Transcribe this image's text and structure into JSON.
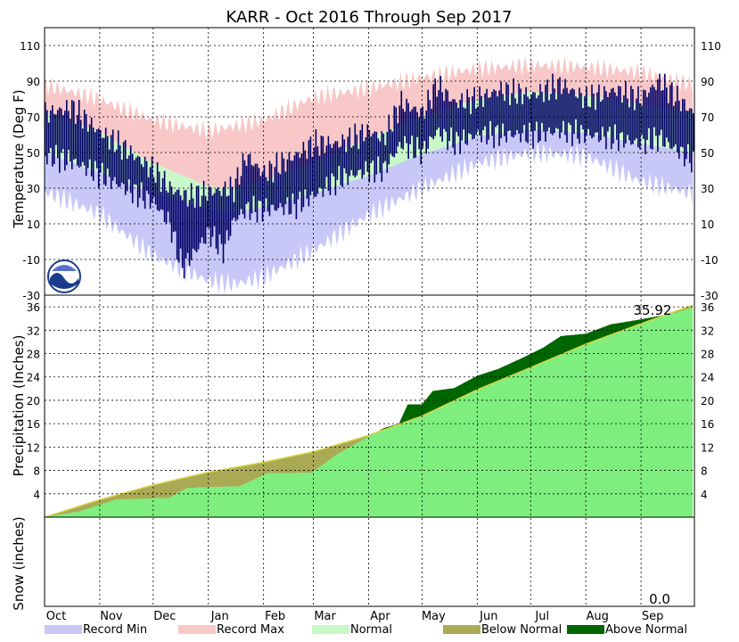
{
  "chart_data": {
    "type": "area",
    "title": "KARR - Oct 2016 Through Sep 2017",
    "months": [
      "Oct",
      "Nov",
      "Dec",
      "Jan",
      "Feb",
      "Mar",
      "Apr",
      "May",
      "Jun",
      "Jul",
      "Aug",
      "Sep"
    ],
    "month_days": [
      31,
      30,
      31,
      31,
      28,
      31,
      30,
      31,
      30,
      31,
      31,
      30
    ],
    "panels": {
      "temperature": {
        "ylabel": "Temperature (Deg F)",
        "ylim": [
          -30,
          120
        ],
        "ticks": [
          -10,
          10,
          30,
          50,
          70,
          90,
          110
        ],
        "tick_labels": [
          "-10",
          "10",
          "30",
          "50",
          "70",
          "90",
          "110"
        ],
        "bottom_tick_label": "-30",
        "normal_high": [
          [
            0,
            73
          ],
          [
            30,
            62
          ],
          [
            61,
            44
          ],
          [
            92,
            31
          ],
          [
            106,
            30
          ],
          [
            123,
            34
          ],
          [
            151,
            45
          ],
          [
            182,
            58
          ],
          [
            212,
            70
          ],
          [
            243,
            80
          ],
          [
            273,
            84
          ],
          [
            304,
            82
          ],
          [
            334,
            77
          ],
          [
            364,
            73
          ]
        ],
        "normal_low": [
          [
            0,
            50
          ],
          [
            30,
            39
          ],
          [
            61,
            27
          ],
          [
            92,
            18
          ],
          [
            106,
            17
          ],
          [
            123,
            19
          ],
          [
            151,
            27
          ],
          [
            182,
            37
          ],
          [
            212,
            49
          ],
          [
            243,
            59
          ],
          [
            273,
            63
          ],
          [
            304,
            61
          ],
          [
            334,
            55
          ],
          [
            364,
            50
          ]
        ],
        "record_max": [
          [
            0,
            88
          ],
          [
            30,
            80
          ],
          [
            61,
            68
          ],
          [
            92,
            62
          ],
          [
            123,
            68
          ],
          [
            151,
            81
          ],
          [
            182,
            86
          ],
          [
            212,
            92
          ],
          [
            243,
            97
          ],
          [
            273,
            99
          ],
          [
            304,
            98
          ],
          [
            334,
            95
          ],
          [
            364,
            88
          ]
        ],
        "record_min": [
          [
            0,
            28
          ],
          [
            30,
            16
          ],
          [
            61,
            -8
          ],
          [
            92,
            -22
          ],
          [
            106,
            -24
          ],
          [
            123,
            -20
          ],
          [
            151,
            -5
          ],
          [
            182,
            15
          ],
          [
            212,
            30
          ],
          [
            243,
            44
          ],
          [
            273,
            50
          ],
          [
            304,
            48
          ],
          [
            334,
            34
          ],
          [
            364,
            27
          ]
        ],
        "observed_high": [
          [
            0,
            72
          ],
          [
            15,
            75
          ],
          [
            30,
            62
          ],
          [
            45,
            52
          ],
          [
            61,
            40
          ],
          [
            70,
            30
          ],
          [
            80,
            25
          ],
          [
            92,
            28
          ],
          [
            106,
            30
          ],
          [
            113,
            48
          ],
          [
            123,
            38
          ],
          [
            140,
            48
          ],
          [
            151,
            55
          ],
          [
            165,
            55
          ],
          [
            182,
            62
          ],
          [
            190,
            58
          ],
          [
            200,
            78
          ],
          [
            212,
            72
          ],
          [
            220,
            88
          ],
          [
            230,
            78
          ],
          [
            243,
            80
          ],
          [
            255,
            85
          ],
          [
            273,
            82
          ],
          [
            290,
            88
          ],
          [
            304,
            80
          ],
          [
            320,
            85
          ],
          [
            334,
            80
          ],
          [
            345,
            90
          ],
          [
            364,
            72
          ]
        ],
        "observed_low": [
          [
            0,
            48
          ],
          [
            15,
            45
          ],
          [
            30,
            38
          ],
          [
            45,
            30
          ],
          [
            61,
            22
          ],
          [
            70,
            10
          ],
          [
            77,
            -15
          ],
          [
            92,
            5
          ],
          [
            100,
            -5
          ],
          [
            106,
            12
          ],
          [
            113,
            18
          ],
          [
            123,
            18
          ],
          [
            140,
            20
          ],
          [
            151,
            26
          ],
          [
            165,
            35
          ],
          [
            182,
            40
          ],
          [
            190,
            40
          ],
          [
            200,
            55
          ],
          [
            212,
            50
          ],
          [
            220,
            62
          ],
          [
            230,
            55
          ],
          [
            243,
            60
          ],
          [
            255,
            60
          ],
          [
            273,
            60
          ],
          [
            290,
            62
          ],
          [
            304,
            60
          ],
          [
            320,
            58
          ],
          [
            334,
            55
          ],
          [
            345,
            58
          ],
          [
            364,
            45
          ]
        ]
      },
      "precipitation": {
        "ylabel": "Precipitation (Inches)",
        "ylim": [
          0,
          38
        ],
        "ticks": [
          4,
          8,
          12,
          16,
          20,
          24,
          28,
          32,
          36
        ],
        "tick_labels": [
          "4",
          "8",
          "12",
          "16",
          "20",
          "24",
          "28",
          "32",
          "36"
        ],
        "total_label": "35.92",
        "normal_cumulative": [
          [
            0,
            0
          ],
          [
            31,
            3.0
          ],
          [
            61,
            5.5
          ],
          [
            92,
            7.7
          ],
          [
            123,
            9.4
          ],
          [
            151,
            11.2
          ],
          [
            182,
            14.0
          ],
          [
            212,
            17.3
          ],
          [
            243,
            21.8
          ],
          [
            273,
            25.6
          ],
          [
            304,
            29.6
          ],
          [
            334,
            33.0
          ],
          [
            364,
            36.3
          ]
        ],
        "observed_cumulative": [
          [
            0,
            0
          ],
          [
            20,
            1.0
          ],
          [
            40,
            3.0
          ],
          [
            70,
            3.3
          ],
          [
            80,
            5.0
          ],
          [
            110,
            5.3
          ],
          [
            125,
            7.5
          ],
          [
            150,
            7.6
          ],
          [
            164,
            10.7
          ],
          [
            182,
            13.8
          ],
          [
            191,
            15.3
          ],
          [
            199,
            16.0
          ],
          [
            204,
            19.3
          ],
          [
            212,
            19.3
          ],
          [
            218,
            21.6
          ],
          [
            230,
            22.1
          ],
          [
            243,
            24.2
          ],
          [
            255,
            25.4
          ],
          [
            270,
            27.5
          ],
          [
            280,
            29.0
          ],
          [
            290,
            31.0
          ],
          [
            304,
            31.4
          ],
          [
            318,
            33.0
          ],
          [
            334,
            33.8
          ],
          [
            355,
            35.0
          ],
          [
            364,
            35.92
          ]
        ]
      },
      "snow": {
        "ylabel": "Snow (inches)",
        "total_label": "0.0"
      }
    },
    "legend": [
      {
        "label": "Record Min",
        "color": "#c8c8f8"
      },
      {
        "label": "Record Max",
        "color": "#f8c8c8"
      },
      {
        "label": "Normal",
        "color": "#c8f8c8"
      },
      {
        "label": "Below Normal",
        "color": "#aaaa55"
      },
      {
        "label": "Above Normal",
        "color": "#006600"
      }
    ],
    "colors": {
      "observed_temp": "#000066",
      "precip_fill": "#7eee7e",
      "grid": "#000000"
    }
  }
}
